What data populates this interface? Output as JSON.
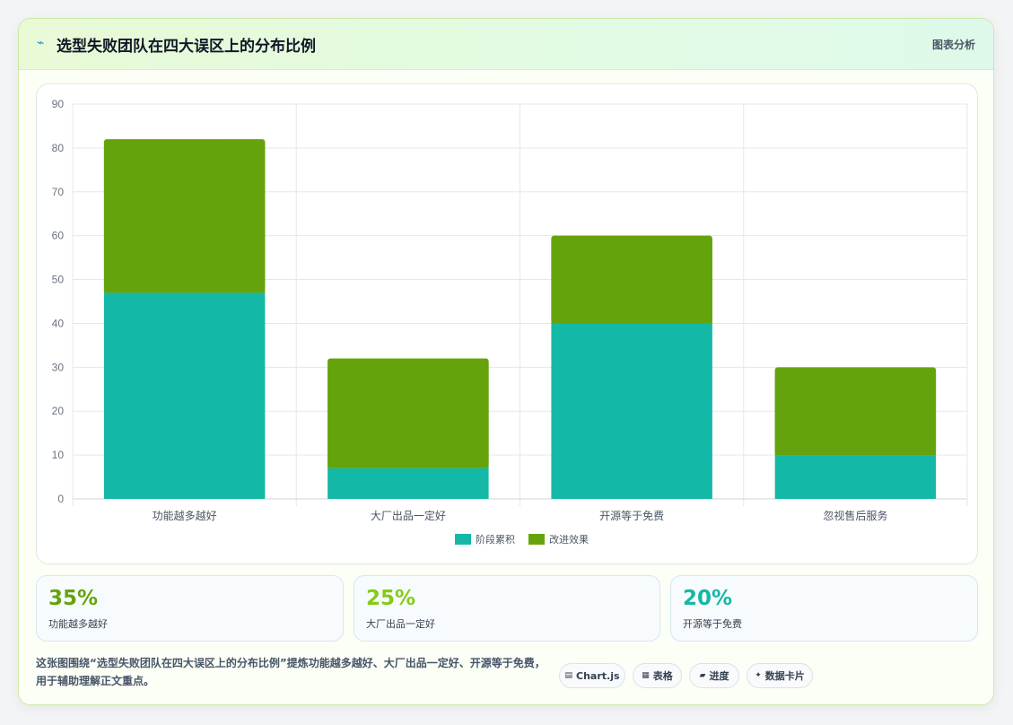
{
  "header": {
    "title": "选型失败团队在四大误区上的分布比例",
    "tag": "图表分析",
    "icon": "lightning-icon"
  },
  "chart_data": {
    "type": "bar",
    "stacked": true,
    "categories": [
      "功能越多越好",
      "大厂出品一定好",
      "开源等于免费",
      "忽视售后服务"
    ],
    "series": [
      {
        "name": "阶段累积",
        "values": [
          47,
          7,
          40,
          10
        ],
        "color": "#14b8a6"
      },
      {
        "name": "改进效果",
        "values": [
          35,
          25,
          20,
          20
        ],
        "color": "#65a30d"
      }
    ],
    "ylim": [
      0,
      90
    ],
    "yticks": [
      "0",
      "10",
      "20",
      "30",
      "40",
      "50",
      "60",
      "70",
      "80",
      "90"
    ],
    "grid": true,
    "legend_position": "bottom"
  },
  "stats": [
    {
      "value": "35%",
      "label": "功能越多越好",
      "color": "#65a30d"
    },
    {
      "value": "25%",
      "label": "大厂出品一定好",
      "color": "#84cc16"
    },
    {
      "value": "20%",
      "label": "开源等于免费",
      "color": "#14b8a6"
    }
  ],
  "footer": {
    "description": "这张图围绕“选型失败团队在四大误区上的分布比例”提炼功能越多越好、大厂出品一定好、开源等于免费，用于辅助理解正文重点。",
    "pills": [
      {
        "icon": "▤",
        "label": "Chart.js"
      },
      {
        "icon": "▦",
        "label": "表格"
      },
      {
        "icon": "▰",
        "label": "进度"
      },
      {
        "icon": "✦",
        "label": "数据卡片"
      }
    ]
  }
}
